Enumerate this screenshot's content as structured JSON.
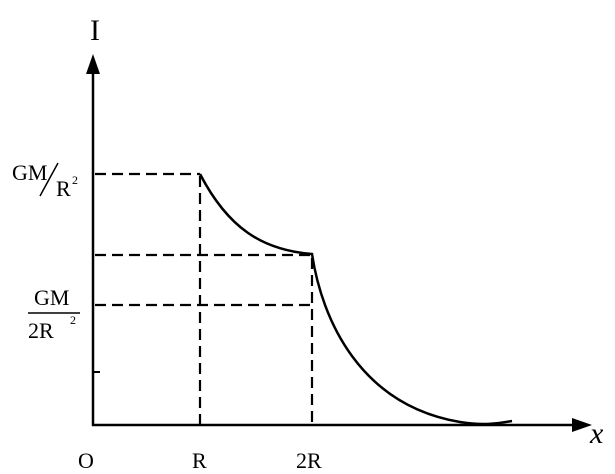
{
  "axes": {
    "y_label": "I",
    "x_label": "x",
    "origin": "O"
  },
  "x_marks": [
    "R",
    "2R"
  ],
  "y_marks": [
    {
      "numerator": "GM",
      "denominator": "R",
      "exponent": "2"
    },
    {
      "numerator": "GM",
      "denominator": "2R",
      "exponent": "2"
    }
  ]
}
